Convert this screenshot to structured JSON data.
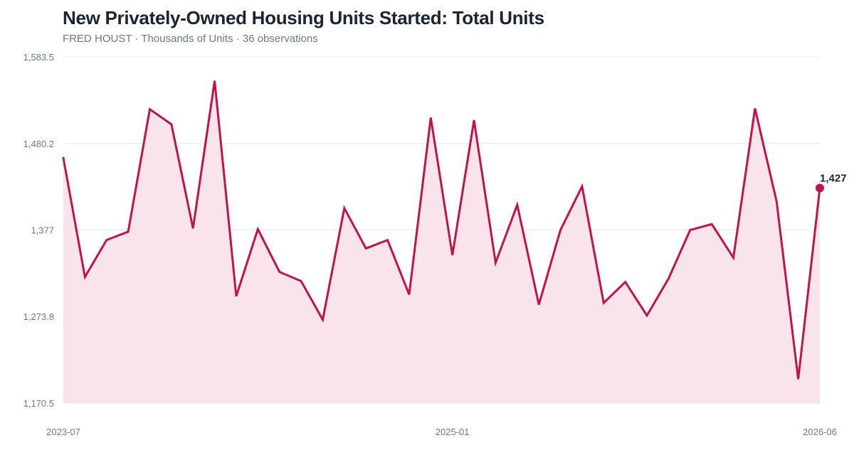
{
  "header": {
    "title": "New Privately-Owned Housing Units Started: Total Units",
    "subtitle": "FRED HOUST · Thousands of Units · 36 observations"
  },
  "colors": {
    "line": "#c0134a",
    "fill": "#f7e1e8",
    "grid": "#e8ebef",
    "text": "#1b2433",
    "muted": "#6b7a8c"
  },
  "chart_data": {
    "type": "area",
    "title": "New Privately-Owned Housing Units Started: Total Units",
    "ylabel": "Thousands of Units",
    "ylim": [
      1170.5,
      1583.5
    ],
    "yticks": [
      "1,583.5",
      "1,480.2",
      "1,377",
      "1,273.8",
      "1,170.5"
    ],
    "ytick_values": [
      1583.5,
      1480.2,
      1377,
      1273.8,
      1170.5
    ],
    "xticks": [
      {
        "label": "2023-07",
        "date": "2023-07"
      },
      {
        "label": "2025-01",
        "date": "2025-01"
      },
      {
        "label": "2026-06",
        "date": "2026-06"
      }
    ],
    "grid": true,
    "series": [
      {
        "x": [
          "2023-07",
          "2023-08",
          "2023-09",
          "2023-10",
          "2023-11",
          "2023-12",
          "2024-01",
          "2024-02",
          "2024-03",
          "2024-04",
          "2024-05",
          "2024-06",
          "2024-07",
          "2024-08",
          "2024-09",
          "2024-10",
          "2024-11",
          "2024-12",
          "2025-01",
          "2025-02",
          "2025-03",
          "2025-04",
          "2025-05",
          "2025-06",
          "2025-07",
          "2025-08",
          "2025-09",
          "2025-10",
          "2025-11",
          "2025-12",
          "2026-01",
          "2026-02",
          "2026-03",
          "2026-04",
          "2026-05",
          "2026-06"
        ],
        "values": [
          1463,
          1321,
          1365,
          1375,
          1521,
          1503,
          1379,
          1555,
          1298,
          1378,
          1327,
          1316,
          1270,
          1403,
          1355,
          1365,
          1300,
          1511,
          1347,
          1508,
          1338,
          1407,
          1288,
          1377,
          1429,
          1290,
          1315,
          1275,
          1319,
          1377,
          1384,
          1344,
          1522,
          1411,
          1199,
          1427
        ]
      }
    ],
    "last_value_label": "1,427"
  }
}
